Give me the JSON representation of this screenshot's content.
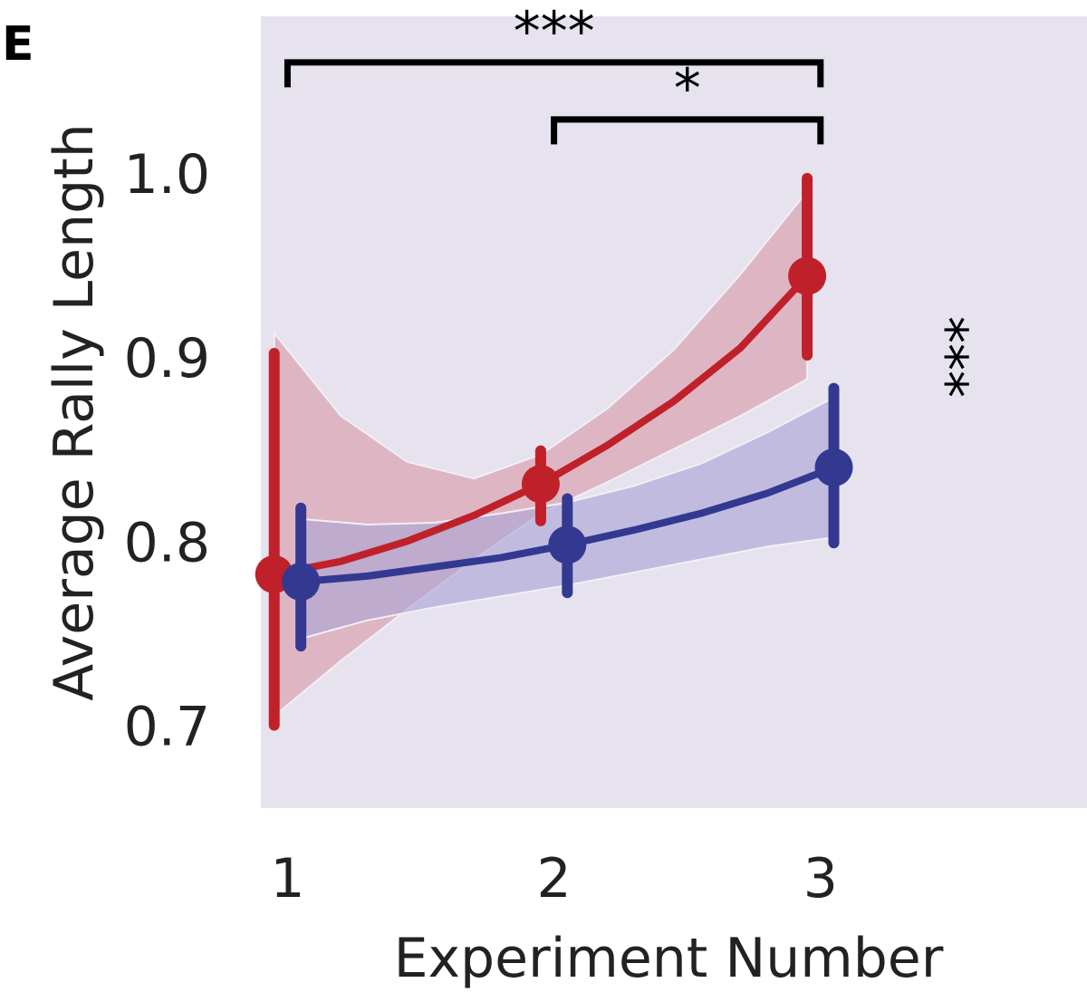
{
  "panel_label": "E",
  "chart_data": {
    "type": "line",
    "xlabel": "Experiment Number",
    "ylabel": "Average Rally Length",
    "xlim": [
      0.9,
      4.0
    ],
    "ylim": [
      0.655,
      1.085
    ],
    "x_ticks": [
      1,
      2,
      3
    ],
    "y_ticks": [
      0.7,
      0.8,
      0.9,
      1.0
    ],
    "y_tick_labels": [
      "0.7",
      "0.8",
      "0.9",
      "1.0"
    ],
    "grid": false,
    "background_color": "#e6e2ee",
    "series": [
      {
        "color": "#c0202a",
        "band_color": "#d99aa6",
        "points": [
          {
            "x": 0.95,
            "y": 0.782,
            "err_low": 0.7,
            "err_high": 0.902
          },
          {
            "x": 1.95,
            "y": 0.831,
            "err_low": 0.811,
            "err_high": 0.849
          },
          {
            "x": 2.95,
            "y": 0.944,
            "err_low": 0.901,
            "err_high": 0.997
          }
        ],
        "fit": [
          {
            "x": 0.95,
            "y": 0.782,
            "lo": 0.705,
            "hi": 0.913
          },
          {
            "x": 1.2,
            "y": 0.789,
            "lo": 0.735,
            "hi": 0.868
          },
          {
            "x": 1.45,
            "y": 0.8,
            "lo": 0.763,
            "hi": 0.843
          },
          {
            "x": 1.7,
            "y": 0.814,
            "lo": 0.79,
            "hi": 0.834
          },
          {
            "x": 1.95,
            "y": 0.831,
            "lo": 0.815,
            "hi": 0.847
          },
          {
            "x": 2.2,
            "y": 0.852,
            "lo": 0.832,
            "hi": 0.872
          },
          {
            "x": 2.45,
            "y": 0.876,
            "lo": 0.85,
            "hi": 0.904
          },
          {
            "x": 2.7,
            "y": 0.905,
            "lo": 0.868,
            "hi": 0.945
          },
          {
            "x": 2.95,
            "y": 0.944,
            "lo": 0.888,
            "hi": 0.99
          }
        ]
      },
      {
        "color": "#333991",
        "band_color": "#a9a4d6",
        "points": [
          {
            "x": 1.05,
            "y": 0.778,
            "err_low": 0.743,
            "err_high": 0.818
          },
          {
            "x": 2.05,
            "y": 0.798,
            "err_low": 0.772,
            "err_high": 0.823
          },
          {
            "x": 3.05,
            "y": 0.84,
            "err_low": 0.799,
            "err_high": 0.883
          }
        ],
        "fit": [
          {
            "x": 1.05,
            "y": 0.778,
            "lo": 0.747,
            "hi": 0.812
          },
          {
            "x": 1.3,
            "y": 0.781,
            "lo": 0.757,
            "hi": 0.809
          },
          {
            "x": 1.55,
            "y": 0.786,
            "lo": 0.764,
            "hi": 0.81
          },
          {
            "x": 1.8,
            "y": 0.791,
            "lo": 0.77,
            "hi": 0.815
          },
          {
            "x": 2.05,
            "y": 0.798,
            "lo": 0.776,
            "hi": 0.821
          },
          {
            "x": 2.3,
            "y": 0.806,
            "lo": 0.783,
            "hi": 0.83
          },
          {
            "x": 2.55,
            "y": 0.815,
            "lo": 0.79,
            "hi": 0.842
          },
          {
            "x": 2.8,
            "y": 0.826,
            "lo": 0.797,
            "hi": 0.859
          },
          {
            "x": 3.05,
            "y": 0.84,
            "lo": 0.802,
            "hi": 0.878
          }
        ]
      }
    ],
    "significance": [
      {
        "label": "***",
        "x_start": 1.0,
        "x_end": 3.0,
        "y": 1.06
      },
      {
        "label": "*",
        "x_start": 2.0,
        "x_end": 3.0,
        "y": 1.029
      }
    ],
    "side_annotation": {
      "label": "***",
      "x": 3.4,
      "y": 0.9
    }
  }
}
